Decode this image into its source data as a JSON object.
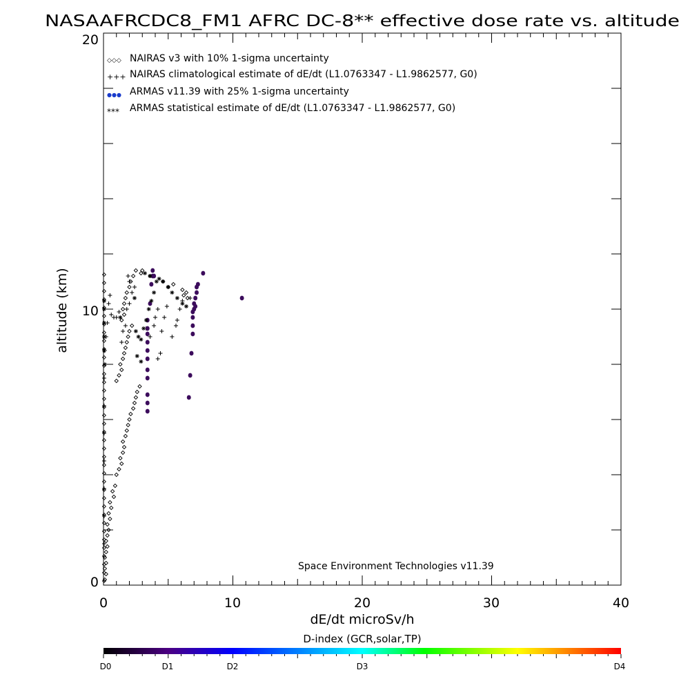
{
  "chart_data": {
    "type": "scatter",
    "title": "NASAAFRCDC8_FM1 AFRC DC-8** effective dose rate vs. altitude",
    "xlabel": "dE/dt microSv/h",
    "ylabel": "altitude (km)",
    "xlim": [
      0,
      40
    ],
    "ylim": [
      0,
      20
    ],
    "x_ticks": [
      "0",
      "10",
      "20",
      "30",
      "40"
    ],
    "y_ticks": [
      "0",
      "10",
      "20"
    ],
    "legend_position": "top-left",
    "credit": "Space Environment Technologies v11.39",
    "legend": [
      {
        "symbol": "◇◇◇",
        "label": "NAIRAS v3 with 10% 1-sigma uncertainty"
      },
      {
        "symbol": "+++",
        "label": "NAIRAS climatological estimate of dE/dt (L1.0763347 - L1.9862577, G0)"
      },
      {
        "symbol": "●●●",
        "label": "ARMAS v11.39 with 25% 1-sigma uncertainty"
      },
      {
        "symbol": "***",
        "label": "ARMAS statistical estimate of dE/dt (L1.0763347 - L1.9862577, G0)"
      }
    ],
    "colorbar": {
      "title": "D-index (GCR,solar,TP)",
      "labels": [
        {
          "text": "D0",
          "value": 0
        },
        {
          "text": "D1",
          "value": 0.5
        },
        {
          "text": "D2",
          "value": 1
        },
        {
          "text": "D3",
          "value": 2
        },
        {
          "text": "D4",
          "value": 4
        }
      ],
      "colors": [
        "#000000",
        "#4b0082",
        "#0000ff",
        "#00ffff",
        "#00ff00",
        "#ffff00",
        "#ff8000",
        "#ff0000"
      ]
    },
    "series": [
      {
        "name": "NAIRAS v3 with 10% 1-sigma uncertainty",
        "marker": "diamond",
        "color": "#000000",
        "points": [
          [
            0.1,
            0.2
          ],
          [
            0.2,
            0.4
          ],
          [
            0.1,
            0.6
          ],
          [
            0.2,
            0.8
          ],
          [
            0.1,
            1.0
          ],
          [
            0.2,
            1.2
          ],
          [
            0.3,
            1.4
          ],
          [
            0.2,
            1.6
          ],
          [
            0.3,
            1.8
          ],
          [
            0.4,
            2.0
          ],
          [
            0.3,
            2.2
          ],
          [
            0.5,
            2.4
          ],
          [
            0.4,
            2.6
          ],
          [
            0.6,
            2.8
          ],
          [
            0.5,
            3.0
          ],
          [
            0.8,
            3.2
          ],
          [
            0.7,
            3.4
          ],
          [
            0.9,
            3.6
          ],
          [
            1.0,
            4.0
          ],
          [
            1.2,
            4.2
          ],
          [
            1.4,
            4.4
          ],
          [
            1.3,
            4.6
          ],
          [
            1.5,
            4.8
          ],
          [
            1.6,
            5.0
          ],
          [
            1.5,
            5.2
          ],
          [
            1.7,
            5.4
          ],
          [
            1.8,
            5.6
          ],
          [
            1.9,
            5.8
          ],
          [
            2.0,
            6.0
          ],
          [
            2.1,
            6.2
          ],
          [
            2.3,
            6.4
          ],
          [
            2.4,
            6.6
          ],
          [
            2.5,
            6.8
          ],
          [
            2.6,
            7.0
          ],
          [
            2.8,
            7.2
          ],
          [
            1.0,
            7.4
          ],
          [
            1.2,
            7.6
          ],
          [
            1.4,
            7.8
          ],
          [
            1.3,
            8.0
          ],
          [
            1.5,
            8.2
          ],
          [
            1.6,
            8.4
          ],
          [
            1.7,
            8.6
          ],
          [
            1.8,
            8.8
          ],
          [
            1.9,
            9.0
          ],
          [
            2.0,
            9.2
          ],
          [
            2.2,
            9.4
          ],
          [
            1.4,
            9.6
          ],
          [
            1.6,
            9.8
          ],
          [
            1.5,
            10.0
          ],
          [
            1.6,
            10.2
          ],
          [
            1.7,
            10.4
          ],
          [
            1.8,
            10.6
          ],
          [
            2.0,
            10.8
          ],
          [
            2.1,
            11.0
          ],
          [
            2.3,
            11.2
          ],
          [
            2.5,
            11.4
          ],
          [
            3.0,
            11.4
          ],
          [
            3.6,
            11.2
          ],
          [
            4.6,
            11.0
          ],
          [
            5.4,
            10.9
          ],
          [
            6.1,
            10.7
          ],
          [
            6.4,
            10.6
          ],
          [
            6.2,
            10.5
          ],
          [
            6.5,
            10.4
          ],
          [
            2.9,
            11.3
          ],
          [
            5.0,
            10.8
          ]
        ]
      },
      {
        "name": "NAIRAS climatological estimate of dE/dt (L1.0763347 - L1.9862577, G0)",
        "marker": "plus",
        "color": "#000000",
        "points": [
          [
            0.05,
            1.5
          ],
          [
            0.05,
            2.5
          ],
          [
            0.05,
            3.5
          ],
          [
            0.05,
            4.5
          ],
          [
            0.05,
            5.5
          ],
          [
            0.05,
            6.5
          ],
          [
            0.05,
            7.5
          ],
          [
            0.1,
            8.5
          ],
          [
            0.2,
            9.0
          ],
          [
            0.3,
            9.5
          ],
          [
            0.4,
            10.2
          ],
          [
            0.5,
            10.5
          ],
          [
            0.6,
            9.8
          ],
          [
            0.8,
            9.7
          ],
          [
            1.0,
            9.7
          ],
          [
            1.2,
            9.9
          ],
          [
            1.4,
            8.8
          ],
          [
            1.5,
            9.2
          ],
          [
            1.7,
            9.4
          ],
          [
            1.8,
            10.0
          ],
          [
            2.0,
            10.2
          ],
          [
            2.2,
            10.6
          ],
          [
            2.4,
            10.8
          ],
          [
            2.0,
            11.0
          ],
          [
            1.9,
            11.2
          ],
          [
            3.3,
            9.3
          ],
          [
            3.6,
            9.0
          ],
          [
            3.9,
            9.4
          ],
          [
            4.0,
            9.7
          ],
          [
            4.2,
            10.0
          ],
          [
            4.5,
            9.2
          ],
          [
            4.7,
            9.7
          ],
          [
            4.9,
            10.1
          ],
          [
            5.3,
            9.0
          ],
          [
            5.6,
            9.4
          ],
          [
            5.7,
            9.6
          ],
          [
            5.9,
            10.0
          ],
          [
            6.1,
            10.3
          ],
          [
            6.4,
            10.1
          ],
          [
            6.7,
            10.4
          ],
          [
            4.2,
            8.2
          ],
          [
            4.4,
            8.4
          ]
        ]
      },
      {
        "name": "ARMAS v11.39 with 25% 1-sigma uncertainty",
        "marker": "dot",
        "color": "#3c0c5c",
        "points": [
          [
            3.4,
            6.3
          ],
          [
            3.4,
            6.6
          ],
          [
            3.4,
            6.9
          ],
          [
            3.4,
            7.5
          ],
          [
            3.4,
            7.8
          ],
          [
            3.4,
            8.2
          ],
          [
            3.4,
            8.5
          ],
          [
            3.4,
            8.8
          ],
          [
            3.4,
            9.1
          ],
          [
            3.4,
            9.3
          ],
          [
            3.4,
            9.6
          ],
          [
            3.6,
            10.2
          ],
          [
            3.7,
            10.9
          ],
          [
            3.8,
            11.2
          ],
          [
            3.8,
            11.4
          ],
          [
            3.9,
            11.2
          ],
          [
            6.6,
            6.8
          ],
          [
            6.7,
            7.6
          ],
          [
            6.8,
            8.4
          ],
          [
            6.9,
            9.1
          ],
          [
            6.9,
            9.4
          ],
          [
            6.9,
            9.7
          ],
          [
            6.9,
            9.9
          ],
          [
            7.0,
            10.0
          ],
          [
            7.0,
            10.2
          ],
          [
            7.1,
            10.4
          ],
          [
            7.2,
            10.6
          ],
          [
            7.2,
            10.8
          ],
          [
            7.3,
            10.9
          ],
          [
            7.1,
            10.1
          ],
          [
            7.7,
            11.3
          ],
          [
            10.7,
            10.4
          ]
        ]
      },
      {
        "name": "ARMAS statistical estimate of dE/dt (L1.0763347 - L1.9862577, G0)",
        "marker": "asterisk",
        "color": "#000000",
        "points": [
          [
            0.05,
            9.0
          ],
          [
            0.05,
            9.5
          ],
          [
            0.05,
            10.0
          ],
          [
            0.05,
            10.3
          ],
          [
            0.05,
            8.5
          ],
          [
            0.1,
            8.0
          ],
          [
            2.5,
            9.2
          ],
          [
            2.7,
            9.0
          ],
          [
            2.9,
            8.9
          ],
          [
            3.1,
            9.3
          ],
          [
            3.3,
            9.6
          ],
          [
            3.5,
            10.0
          ],
          [
            3.7,
            10.3
          ],
          [
            3.9,
            10.6
          ],
          [
            4.1,
            11.0
          ],
          [
            4.3,
            11.1
          ],
          [
            4.6,
            11.0
          ],
          [
            5.0,
            10.8
          ],
          [
            5.3,
            10.6
          ],
          [
            5.7,
            10.4
          ],
          [
            6.1,
            10.2
          ],
          [
            6.4,
            10.1
          ],
          [
            2.6,
            8.3
          ],
          [
            2.9,
            8.1
          ],
          [
            1.3,
            9.7
          ],
          [
            2.4,
            10.4
          ],
          [
            3.2,
            11.3
          ],
          [
            3.6,
            11.2
          ]
        ]
      }
    ]
  }
}
